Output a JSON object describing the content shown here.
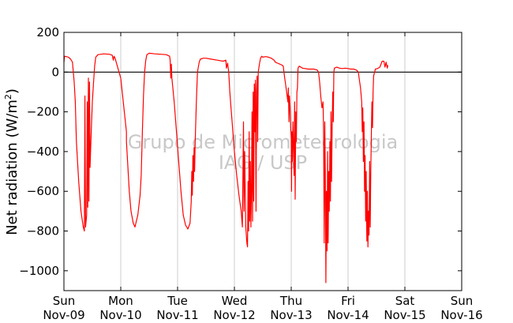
{
  "chart_data": {
    "type": "line",
    "title": "",
    "xlabel": "",
    "ylabel_main": "Net radiation (W/m",
    "ylabel_sup": "2",
    "ylabel_close": ")",
    "ylim": [
      -1100,
      200
    ],
    "yticks": [
      200,
      0,
      -200,
      -400,
      -600,
      -800,
      -1000
    ],
    "ytick_labels": [
      "200",
      "0",
      "−200",
      "−400",
      "−600",
      "−800",
      "−1000"
    ],
    "xlim": [
      0,
      7
    ],
    "xticks": [
      {
        "day": 0,
        "line1": "Sun",
        "line2": "Nov-09"
      },
      {
        "day": 1,
        "line1": "Mon",
        "line2": "Nov-10"
      },
      {
        "day": 2,
        "line1": "Tue",
        "line2": "Nov-11"
      },
      {
        "day": 3,
        "line1": "Wed",
        "line2": "Nov-12"
      },
      {
        "day": 4,
        "line1": "Thu",
        "line2": "Nov-13"
      },
      {
        "day": 5,
        "line1": "Fri",
        "line2": "Nov-14"
      },
      {
        "day": 6,
        "line1": "Sat",
        "line2": "Nov-15"
      },
      {
        "day": 7,
        "line1": "Sun",
        "line2": "Nov-16"
      }
    ],
    "grid": "vertical",
    "zero_line": true,
    "series_color": "#ff0000",
    "watermark_line1": "Grupo de Micrometeorologia",
    "watermark_line2": "IAG / USP",
    "series": [
      {
        "values": [
          [
            0.0,
            50
          ],
          [
            0.01,
            80
          ],
          [
            0.04,
            78
          ],
          [
            0.08,
            75
          ],
          [
            0.12,
            65
          ],
          [
            0.15,
            50
          ],
          [
            0.18,
            -50
          ],
          [
            0.2,
            -150
          ],
          [
            0.22,
            -350
          ],
          [
            0.26,
            -550
          ],
          [
            0.3,
            -700
          ],
          [
            0.34,
            -780
          ],
          [
            0.36,
            -800
          ],
          [
            0.37,
            -120
          ],
          [
            0.38,
            -780
          ],
          [
            0.4,
            -720
          ],
          [
            0.41,
            -150
          ],
          [
            0.42,
            -680
          ],
          [
            0.43,
            -30
          ],
          [
            0.44,
            -650
          ],
          [
            0.45,
            -50
          ],
          [
            0.46,
            -480
          ],
          [
            0.48,
            -300
          ],
          [
            0.5,
            -150
          ],
          [
            0.52,
            -60
          ],
          [
            0.54,
            30
          ],
          [
            0.56,
            75
          ],
          [
            0.6,
            88
          ],
          [
            0.7,
            92
          ],
          [
            0.8,
            90
          ],
          [
            0.85,
            85
          ],
          [
            0.87,
            60
          ],
          [
            0.88,
            80
          ],
          [
            0.9,
            70
          ],
          [
            1.0,
            -30
          ],
          [
            1.1,
            -300
          ],
          [
            1.1,
            -350
          ],
          [
            1.15,
            -600
          ],
          [
            1.18,
            -700
          ],
          [
            1.22,
            -760
          ],
          [
            1.25,
            -780
          ],
          [
            1.3,
            -720
          ],
          [
            1.34,
            -620
          ],
          [
            1.36,
            -520
          ],
          [
            1.38,
            -300
          ],
          [
            1.4,
            -120
          ],
          [
            1.42,
            0
          ],
          [
            1.44,
            60
          ],
          [
            1.46,
            88
          ],
          [
            1.5,
            95
          ],
          [
            1.6,
            92
          ],
          [
            1.7,
            90
          ],
          [
            1.8,
            88
          ],
          [
            1.86,
            80
          ],
          [
            1.87,
            60
          ],
          [
            1.88,
            -30
          ],
          [
            1.89,
            40
          ],
          [
            1.9,
            -30
          ],
          [
            1.94,
            -150
          ],
          [
            1.98,
            -300
          ],
          [
            2.02,
            -450
          ],
          [
            2.06,
            -600
          ],
          [
            2.1,
            -720
          ],
          [
            2.14,
            -770
          ],
          [
            2.18,
            -790
          ],
          [
            2.22,
            -760
          ],
          [
            2.24,
            -650
          ],
          [
            2.25,
            -500
          ],
          [
            2.26,
            -620
          ],
          [
            2.27,
            -420
          ],
          [
            2.28,
            -550
          ],
          [
            2.29,
            -380
          ],
          [
            2.3,
            -500
          ],
          [
            2.31,
            -350
          ],
          [
            2.33,
            -150
          ],
          [
            2.35,
            0
          ],
          [
            2.38,
            50
          ],
          [
            2.4,
            65
          ],
          [
            2.45,
            70
          ],
          [
            2.5,
            70
          ],
          [
            2.6,
            65
          ],
          [
            2.7,
            60
          ],
          [
            2.8,
            55
          ],
          [
            2.85,
            60
          ],
          [
            2.86,
            20
          ],
          [
            2.88,
            45
          ],
          [
            2.9,
            0
          ],
          [
            2.92,
            -100
          ],
          [
            2.94,
            -180
          ],
          [
            2.96,
            -250
          ],
          [
            2.98,
            -330
          ],
          [
            3.0,
            -400
          ],
          [
            3.04,
            -520
          ],
          [
            3.08,
            -620
          ],
          [
            3.12,
            -700
          ],
          [
            3.14,
            -780
          ],
          [
            3.16,
            -250
          ],
          [
            3.17,
            -700
          ],
          [
            3.18,
            -400
          ],
          [
            3.19,
            -600
          ],
          [
            3.2,
            -780
          ],
          [
            3.22,
            -860
          ],
          [
            3.23,
            -880
          ],
          [
            3.24,
            -550
          ],
          [
            3.25,
            -800
          ],
          [
            3.26,
            -300
          ],
          [
            3.27,
            -750
          ],
          [
            3.28,
            -450
          ],
          [
            3.29,
            -780
          ],
          [
            3.3,
            -600
          ],
          [
            3.31,
            -200
          ],
          [
            3.32,
            -750
          ],
          [
            3.33,
            -100
          ],
          [
            3.34,
            -650
          ],
          [
            3.35,
            -60
          ],
          [
            3.36,
            -300
          ],
          [
            3.37,
            -40
          ],
          [
            3.38,
            -700
          ],
          [
            3.39,
            -100
          ],
          [
            3.4,
            -20
          ],
          [
            3.41,
            -350
          ],
          [
            3.42,
            0
          ],
          [
            3.44,
            40
          ],
          [
            3.46,
            70
          ],
          [
            3.48,
            80
          ],
          [
            3.5,
            75
          ],
          [
            3.55,
            78
          ],
          [
            3.6,
            75
          ],
          [
            3.65,
            70
          ],
          [
            3.7,
            60
          ],
          [
            3.72,
            50
          ],
          [
            3.76,
            45
          ],
          [
            3.8,
            40
          ],
          [
            3.84,
            35
          ],
          [
            3.86,
            30
          ],
          [
            3.88,
            -20
          ],
          [
            3.9,
            -60
          ],
          [
            3.92,
            -100
          ],
          [
            3.94,
            -150
          ],
          [
            3.95,
            -80
          ],
          [
            3.96,
            -250
          ],
          [
            3.97,
            -120
          ],
          [
            3.98,
            -180
          ],
          [
            3.99,
            -280
          ],
          [
            4.0,
            -330
          ],
          [
            4.005,
            -600
          ],
          [
            4.01,
            -300
          ],
          [
            4.02,
            -450
          ],
          [
            4.03,
            -250
          ],
          [
            4.04,
            -380
          ],
          [
            4.05,
            -520
          ],
          [
            4.06,
            -150
          ],
          [
            4.07,
            -640
          ],
          [
            4.08,
            -200
          ],
          [
            4.09,
            -350
          ],
          [
            4.1,
            -100
          ],
          [
            4.11,
            -80
          ],
          [
            4.12,
            20
          ],
          [
            4.14,
            30
          ],
          [
            4.2,
            20
          ],
          [
            4.3,
            15
          ],
          [
            4.4,
            15
          ],
          [
            4.46,
            10
          ],
          [
            4.48,
            0
          ],
          [
            4.5,
            -50
          ],
          [
            4.52,
            -120
          ],
          [
            4.54,
            -180
          ],
          [
            4.56,
            -150
          ],
          [
            4.57,
            -300
          ],
          [
            4.58,
            -860
          ],
          [
            4.59,
            -250
          ],
          [
            4.6,
            -500
          ],
          [
            4.61,
            -1060
          ],
          [
            4.62,
            -600
          ],
          [
            4.63,
            -900
          ],
          [
            4.64,
            -400
          ],
          [
            4.65,
            -860
          ],
          [
            4.66,
            -500
          ],
          [
            4.67,
            -700
          ],
          [
            4.68,
            -350
          ],
          [
            4.69,
            -650
          ],
          [
            4.7,
            -200
          ],
          [
            4.71,
            -550
          ],
          [
            4.72,
            -300
          ],
          [
            4.73,
            -100
          ],
          [
            4.74,
            -250
          ],
          [
            4.75,
            0
          ],
          [
            4.76,
            20
          ],
          [
            4.8,
            25
          ],
          [
            4.85,
            20
          ],
          [
            4.9,
            18
          ],
          [
            4.95,
            20
          ],
          [
            5.0,
            18
          ],
          [
            5.05,
            15
          ],
          [
            5.1,
            15
          ],
          [
            5.15,
            10
          ],
          [
            5.18,
            0
          ],
          [
            5.2,
            -40
          ],
          [
            5.22,
            -80
          ],
          [
            5.24,
            -150
          ],
          [
            5.25,
            -300
          ],
          [
            5.26,
            -180
          ],
          [
            5.27,
            -450
          ],
          [
            5.28,
            -250
          ],
          [
            5.29,
            -600
          ],
          [
            5.3,
            -420
          ],
          [
            5.31,
            -750
          ],
          [
            5.32,
            -500
          ],
          [
            5.33,
            -850
          ],
          [
            5.34,
            -600
          ],
          [
            5.35,
            -880
          ],
          [
            5.36,
            -700
          ],
          [
            5.37,
            -820
          ],
          [
            5.38,
            -450
          ],
          [
            5.39,
            -780
          ],
          [
            5.4,
            -500
          ],
          [
            5.41,
            -320
          ],
          [
            5.42,
            -150
          ],
          [
            5.43,
            -280
          ],
          [
            5.44,
            -100
          ],
          [
            5.45,
            -20
          ],
          [
            5.48,
            15
          ],
          [
            5.52,
            18
          ],
          [
            5.56,
            25
          ],
          [
            5.6,
            55
          ],
          [
            5.63,
            55
          ],
          [
            5.65,
            25
          ],
          [
            5.67,
            50
          ],
          [
            5.69,
            20
          ],
          [
            5.7,
            35
          ]
        ]
      }
    ]
  }
}
